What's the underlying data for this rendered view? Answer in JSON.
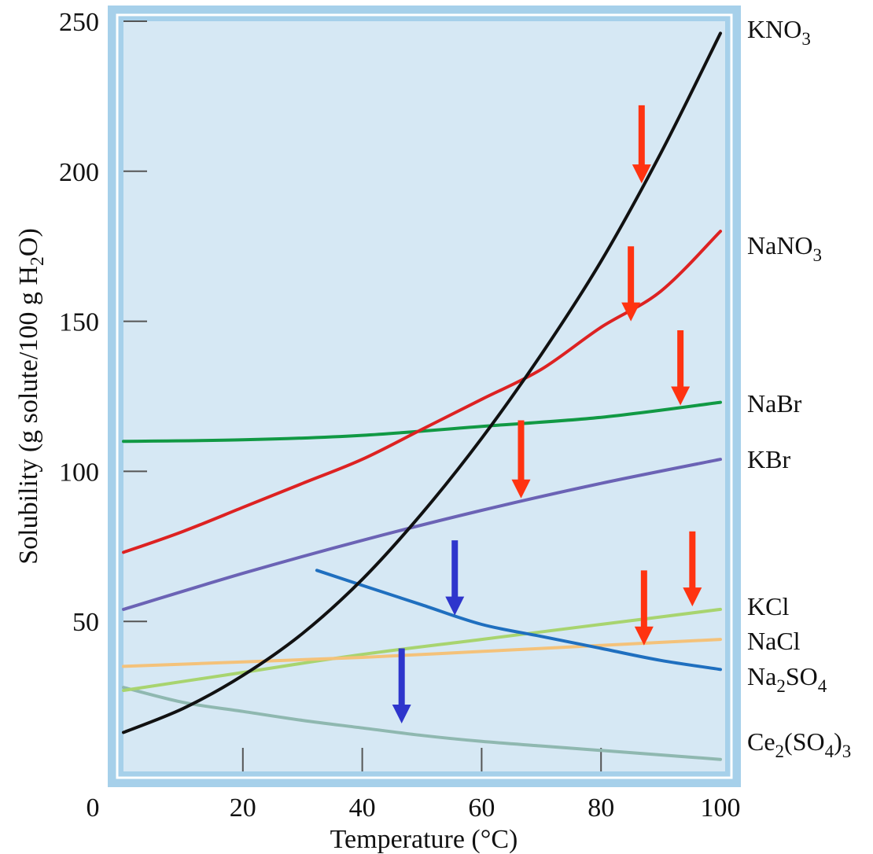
{
  "chart_data": {
    "type": "line",
    "title": "",
    "xlabel": "Temperature (°C)",
    "ylabel": "Solubility (g solute/100 g H2O)",
    "ylabel_parts": {
      "a": "Solubility (g solute/100 g H",
      "sub": "2",
      "b": "O)"
    },
    "xlim": [
      0,
      100
    ],
    "ylim": [
      0,
      250
    ],
    "xticks": [
      0,
      20,
      40,
      60,
      80,
      100
    ],
    "xtick_labels": [
      "0",
      "20",
      "40",
      "60",
      "80",
      "100"
    ],
    "yticks": [
      50,
      100,
      150,
      200,
      250
    ],
    "ytick_labels": [
      "50",
      "100",
      "150",
      "200",
      "250"
    ],
    "grid": false,
    "legend": "right (labels beside line ends)",
    "colors": {
      "plot_bg": "#d6e8f4",
      "frame": "#a6d0ea",
      "frame_inner": "#ffffff"
    },
    "series": [
      {
        "name": "KNO3",
        "label": {
          "base": "KNO",
          "sub": "3",
          "after": ""
        },
        "color": "#111111",
        "x": [
          0,
          10,
          20,
          30,
          40,
          50,
          60,
          70,
          80,
          90,
          100
        ],
        "y": [
          13,
          21,
          32,
          46,
          64,
          86,
          111,
          139,
          170,
          206,
          246
        ]
      },
      {
        "name": "NaNO3",
        "label": {
          "base": "NaNO",
          "sub": "3",
          "after": ""
        },
        "color": "#dd2222",
        "x": [
          0,
          10,
          20,
          30,
          40,
          50,
          60,
          70,
          80,
          90,
          100
        ],
        "y": [
          73,
          80,
          88,
          96,
          104,
          114,
          124,
          134,
          148,
          160,
          180
        ]
      },
      {
        "name": "NaBr",
        "label": {
          "base": "NaBr",
          "sub": "",
          "after": ""
        },
        "color": "#119944",
        "x": [
          0,
          20,
          40,
          60,
          80,
          100
        ],
        "y": [
          110,
          110.5,
          112,
          115,
          118,
          123
        ]
      },
      {
        "name": "KBr",
        "label": {
          "base": "KBr",
          "sub": "",
          "after": ""
        },
        "color": "#6b63b5",
        "x": [
          0,
          20,
          40,
          60,
          80,
          100
        ],
        "y": [
          54,
          66,
          77,
          87,
          96,
          104
        ]
      },
      {
        "name": "KCl",
        "label": {
          "base": "KCl",
          "sub": "",
          "after": ""
        },
        "color": "#a8d46f",
        "x": [
          0,
          20,
          40,
          60,
          80,
          100
        ],
        "y": [
          27,
          33,
          39,
          44,
          49,
          54
        ]
      },
      {
        "name": "NaCl",
        "label": {
          "base": "NaCl",
          "sub": "",
          "after": ""
        },
        "color": "#f4c27a",
        "x": [
          0,
          20,
          40,
          60,
          80,
          100
        ],
        "y": [
          35,
          36.5,
          38,
          40,
          42,
          44
        ]
      },
      {
        "name": "Na2SO4",
        "label": {
          "base": "Na",
          "sub": "2",
          "after": "SO",
          "sub2": "4"
        },
        "color": "#1f6fbf",
        "x": [
          32.4,
          40,
          50,
          60,
          70,
          80,
          90,
          100
        ],
        "y": [
          67,
          62,
          55.5,
          49,
          45,
          41,
          37,
          34
        ]
      },
      {
        "name": "Ce2(SO4)3",
        "label": {
          "base": "Ce",
          "sub": "2",
          "after": "(SO",
          "sub2": "4",
          "after2": ")",
          "sub3": "3"
        },
        "color": "#8fb8b0",
        "x": [
          0,
          10,
          20,
          30,
          40,
          50,
          60,
          70,
          80,
          90,
          100
        ],
        "y": [
          28,
          23,
          20,
          17,
          14.5,
          12,
          10,
          8.5,
          7,
          5.5,
          4
        ]
      }
    ],
    "annotations": [
      {
        "type": "arrow",
        "color": "#ff3311",
        "x": 86.8,
        "y_from": 222,
        "y_to": 196
      },
      {
        "type": "arrow",
        "color": "#ff3311",
        "x": 85,
        "y_from": 175,
        "y_to": 150
      },
      {
        "type": "arrow",
        "color": "#ff3311",
        "x": 93.3,
        "y_from": 147,
        "y_to": 122
      },
      {
        "type": "arrow",
        "color": "#ff3311",
        "x": 66.6,
        "y_from": 117,
        "y_to": 91
      },
      {
        "type": "arrow",
        "color": "#ff3311",
        "x": 95.3,
        "y_from": 80,
        "y_to": 55
      },
      {
        "type": "arrow",
        "color": "#ff3311",
        "x": 87.2,
        "y_from": 67,
        "y_to": 42
      },
      {
        "type": "arrow",
        "color": "#2e35cc",
        "x": 55.5,
        "y_from": 77,
        "y_to": 52
      },
      {
        "type": "arrow",
        "color": "#2e35cc",
        "x": 46.6,
        "y_from": 41,
        "y_to": 16
      }
    ]
  }
}
